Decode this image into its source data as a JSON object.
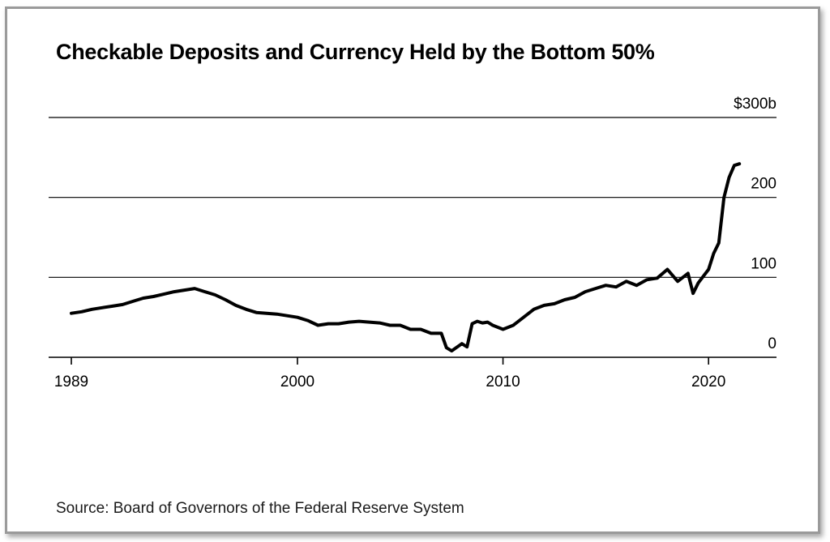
{
  "chart_data": {
    "type": "line",
    "title": "Checkable Deposits and Currency Held by the Bottom 50%",
    "source": "Source: Board of Governors of the Federal Reserve System",
    "xlim": [
      1989,
      2024
    ],
    "ylim": [
      0,
      300
    ],
    "x_ticks": [
      {
        "value": 1989,
        "label": "1989"
      },
      {
        "value": 2000,
        "label": "2000"
      },
      {
        "value": 2010,
        "label": "2010"
      },
      {
        "value": 2020,
        "label": "2020"
      }
    ],
    "y_ticks": [
      {
        "value": 0,
        "label": "0"
      },
      {
        "value": 100,
        "label": "100"
      },
      {
        "value": 200,
        "label": "200"
      },
      {
        "value": 300,
        "label": "$300b"
      }
    ],
    "grid": true,
    "color": "#000000",
    "series": [
      {
        "x": [
          1989.0,
          1989.5,
          1990.0,
          1990.5,
          1991.0,
          1991.5,
          1992.0,
          1992.5,
          1993.0,
          1993.5,
          1994.0,
          1994.5,
          1995.0,
          1995.5,
          1996.0,
          1996.5,
          1997.0,
          1997.5,
          1998.0,
          1998.5,
          1999.0,
          1999.5,
          2000.0,
          2000.5,
          2001.0,
          2001.5,
          2002.0,
          2002.5,
          2003.0,
          2003.5,
          2004.0,
          2004.5,
          2005.0,
          2005.5,
          2006.0,
          2006.5,
          2007.0,
          2007.25,
          2007.5,
          2008.0,
          2008.25,
          2008.5,
          2008.75,
          2009.0,
          2009.25,
          2009.5,
          2010.0,
          2010.5,
          2011.0,
          2011.5,
          2012.0,
          2012.5,
          2013.0,
          2013.5,
          2014.0,
          2014.5,
          2015.0,
          2015.5,
          2016.0,
          2016.5,
          2017.0,
          2017.5,
          2018.0,
          2018.5,
          2019.0,
          2019.25,
          2019.5,
          2020.0,
          2020.25,
          2020.5,
          2020.75,
          2021.0,
          2021.25,
          2021.5
        ],
        "y": [
          55,
          57,
          60,
          62,
          64,
          66,
          70,
          74,
          76,
          79,
          82,
          84,
          86,
          82,
          78,
          72,
          65,
          60,
          56,
          55,
          54,
          52,
          50,
          46,
          40,
          42,
          42,
          44,
          45,
          44,
          43,
          40,
          40,
          35,
          35,
          30,
          30,
          12,
          8,
          17,
          13,
          42,
          45,
          43,
          44,
          40,
          35,
          40,
          50,
          60,
          65,
          67,
          72,
          75,
          82,
          86,
          90,
          88,
          95,
          90,
          97,
          99,
          110,
          95,
          105,
          80,
          93,
          110,
          130,
          143,
          200,
          225,
          240,
          242
        ]
      }
    ]
  }
}
